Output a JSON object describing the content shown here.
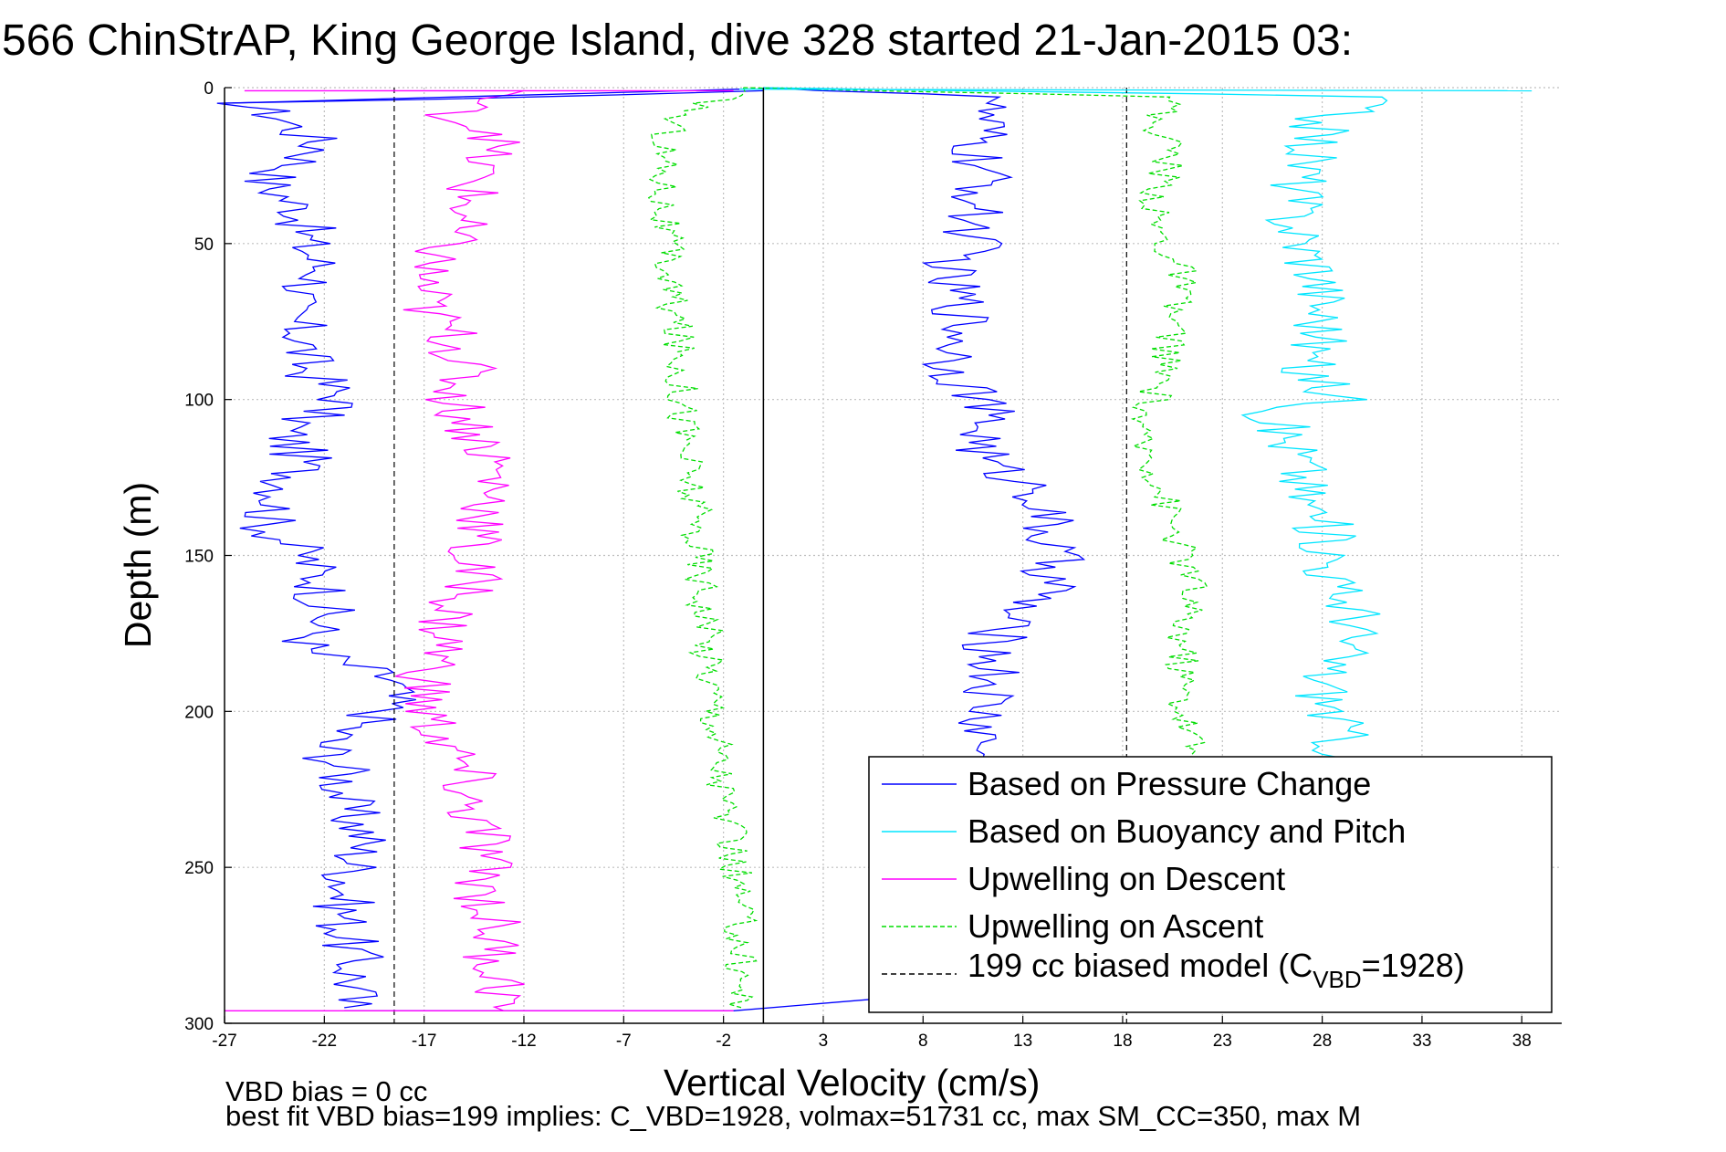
{
  "chart_data": {
    "type": "line",
    "title": "566 ChinStrAP, King George Island, dive 328 started 21-Jan-2015 03:",
    "xlabel": "Vertical Velocity (cm/s)",
    "ylabel": "Depth (m)",
    "xlim": [
      -27,
      40
    ],
    "ylim": [
      300,
      0
    ],
    "y_reversed": true,
    "grid": true,
    "xticks": [
      -27,
      -22,
      -17,
      -12,
      -7,
      -2,
      3,
      8,
      13,
      18,
      23,
      28,
      33,
      38
    ],
    "xtick_labels": [
      "-27",
      "-22",
      "-17",
      "-12",
      "-7",
      "-2",
      "3",
      "8",
      "13",
      "18",
      "23",
      "28",
      "33",
      "38"
    ],
    "yticks": [
      0,
      50,
      100,
      150,
      200,
      250,
      300
    ],
    "ytick_labels": [
      "0",
      "50",
      "100",
      "150",
      "200",
      "250",
      "300"
    ],
    "legend_position": "bottom-right",
    "legend_model_prefix": "199 cc biased model (C",
    "legend_model_sub": "VBD",
    "legend_model_suffix": "=1928)",
    "series": [
      {
        "name": "Based on Pressure Change",
        "color": "#0000ff",
        "dash": "solid",
        "depth": [
          1,
          5,
          10,
          15,
          20,
          30,
          40,
          50,
          60,
          70,
          80,
          90,
          100,
          110,
          120,
          130,
          140,
          150,
          160,
          170,
          180,
          190,
          200,
          210,
          220,
          230,
          240,
          250,
          260,
          270,
          280,
          290,
          295
        ],
        "velocity": [
          0,
          -26,
          -24,
          -23,
          -22,
          -25,
          -23,
          -23,
          -22,
          -24,
          -23,
          -23,
          -21,
          -24,
          -23,
          -24,
          -25,
          -23,
          -22,
          -22,
          -23,
          -18.5,
          -19,
          -22,
          -21,
          -21,
          -20,
          -20.5,
          -21,
          -21,
          -20.5,
          -20.5,
          -21
        ]
      },
      {
        "name": "Based on Pressure Change",
        "color": "#0000ff",
        "dash": "solid",
        "depth": [
          0,
          3,
          5,
          10,
          20,
          30,
          40,
          50,
          60,
          70,
          80,
          90,
          100,
          110,
          120,
          130,
          140,
          150,
          160,
          170,
          180,
          190,
          200,
          210,
          215
        ],
        "velocity": [
          0,
          12.5,
          11,
          11,
          10.5,
          11,
          10.5,
          10.5,
          9,
          10,
          10,
          9.5,
          11,
          11,
          11,
          14,
          14,
          14.5,
          14.5,
          12,
          11.5,
          11.5,
          11,
          11,
          11
        ]
      },
      {
        "name": "Based on Buoyancy and Pitch",
        "color": "#00e5ff",
        "dash": "solid",
        "depth": [
          0,
          3,
          10,
          20,
          30,
          40,
          50,
          60,
          70,
          80,
          90,
          100,
          105,
          110,
          120,
          130,
          140,
          150,
          160,
          170,
          180,
          190,
          200,
          210,
          215
        ],
        "velocity": [
          0,
          31,
          28,
          27.5,
          27,
          26.5,
          27,
          28,
          28,
          28,
          27,
          29,
          25.5,
          26,
          27,
          27,
          28,
          28.5,
          28.5,
          30,
          29,
          28,
          28.5,
          29,
          29
        ]
      },
      {
        "name": "Upwelling on Descent",
        "color": "#ff00ff",
        "dash": "solid",
        "depth": [
          1,
          5,
          10,
          15,
          20,
          30,
          40,
          50,
          60,
          70,
          80,
          90,
          100,
          110,
          120,
          130,
          140,
          150,
          160,
          170,
          180,
          190,
          200,
          210,
          220,
          230,
          240,
          250,
          260,
          270,
          280,
          290,
          296
        ],
        "velocity": [
          -12,
          -15,
          -15.5,
          -13,
          -14,
          -14.5,
          -15,
          -16,
          -17,
          -17,
          -15.5,
          -15,
          -15.5,
          -14.5,
          -13.5,
          -13.5,
          -14,
          -15,
          -14.5,
          -16,
          -16,
          -17,
          -17,
          -16,
          -15,
          -15,
          -14,
          -14,
          -14,
          -13.5,
          -13.5,
          -13,
          -13
        ]
      },
      {
        "name": "Upwelling on Ascent",
        "color": "#00dd00",
        "dash": "dashed",
        "depth": [
          0,
          10,
          20,
          40,
          60,
          80,
          100,
          120,
          140,
          160,
          180,
          200,
          220,
          240,
          260,
          280,
          295
        ],
        "velocity": [
          -1,
          -4.5,
          -5,
          -5,
          -4.8,
          -4.3,
          -4,
          -3.8,
          -3.4,
          -3,
          -2.8,
          -2.4,
          -2.1,
          -1.7,
          -1.3,
          -1.1,
          -1.1
        ]
      },
      {
        "name": "Upwelling on Ascent",
        "color": "#00dd00",
        "dash": "dashed",
        "depth": [
          0,
          3,
          10,
          20,
          30,
          40,
          50,
          60,
          70,
          80,
          90,
          100,
          110,
          120,
          130,
          140,
          150,
          160,
          170,
          180,
          190,
          200,
          210,
          215
        ],
        "velocity": [
          -1,
          21,
          19.5,
          20.5,
          20,
          19.5,
          20,
          21,
          20.5,
          20.5,
          20,
          19.5,
          18.5,
          19.5,
          20,
          20.5,
          21,
          21.5,
          21,
          21,
          21,
          21,
          21.5,
          21.5
        ]
      },
      {
        "name": "199 cc biased model (CVBD=1928)",
        "color": "#000000",
        "dash": "dashed",
        "depth": [
          0,
          300
        ],
        "velocity": [
          -18.5,
          -18.5
        ]
      },
      {
        "name": "199 cc biased model (CVBD=1928)",
        "color": "#000000",
        "dash": "dashed",
        "depth": [
          0,
          300
        ],
        "velocity": [
          18.2,
          18.2
        ]
      }
    ],
    "zero_line": {
      "color": "#000000",
      "velocity": 0
    }
  },
  "notes": {
    "bias_line": "VBD bias = 0 cc",
    "fit_line": "best fit VBD bias=199 implies: C_VBD=1928, volmax=51731 cc, max SM_CC=350, max M"
  }
}
